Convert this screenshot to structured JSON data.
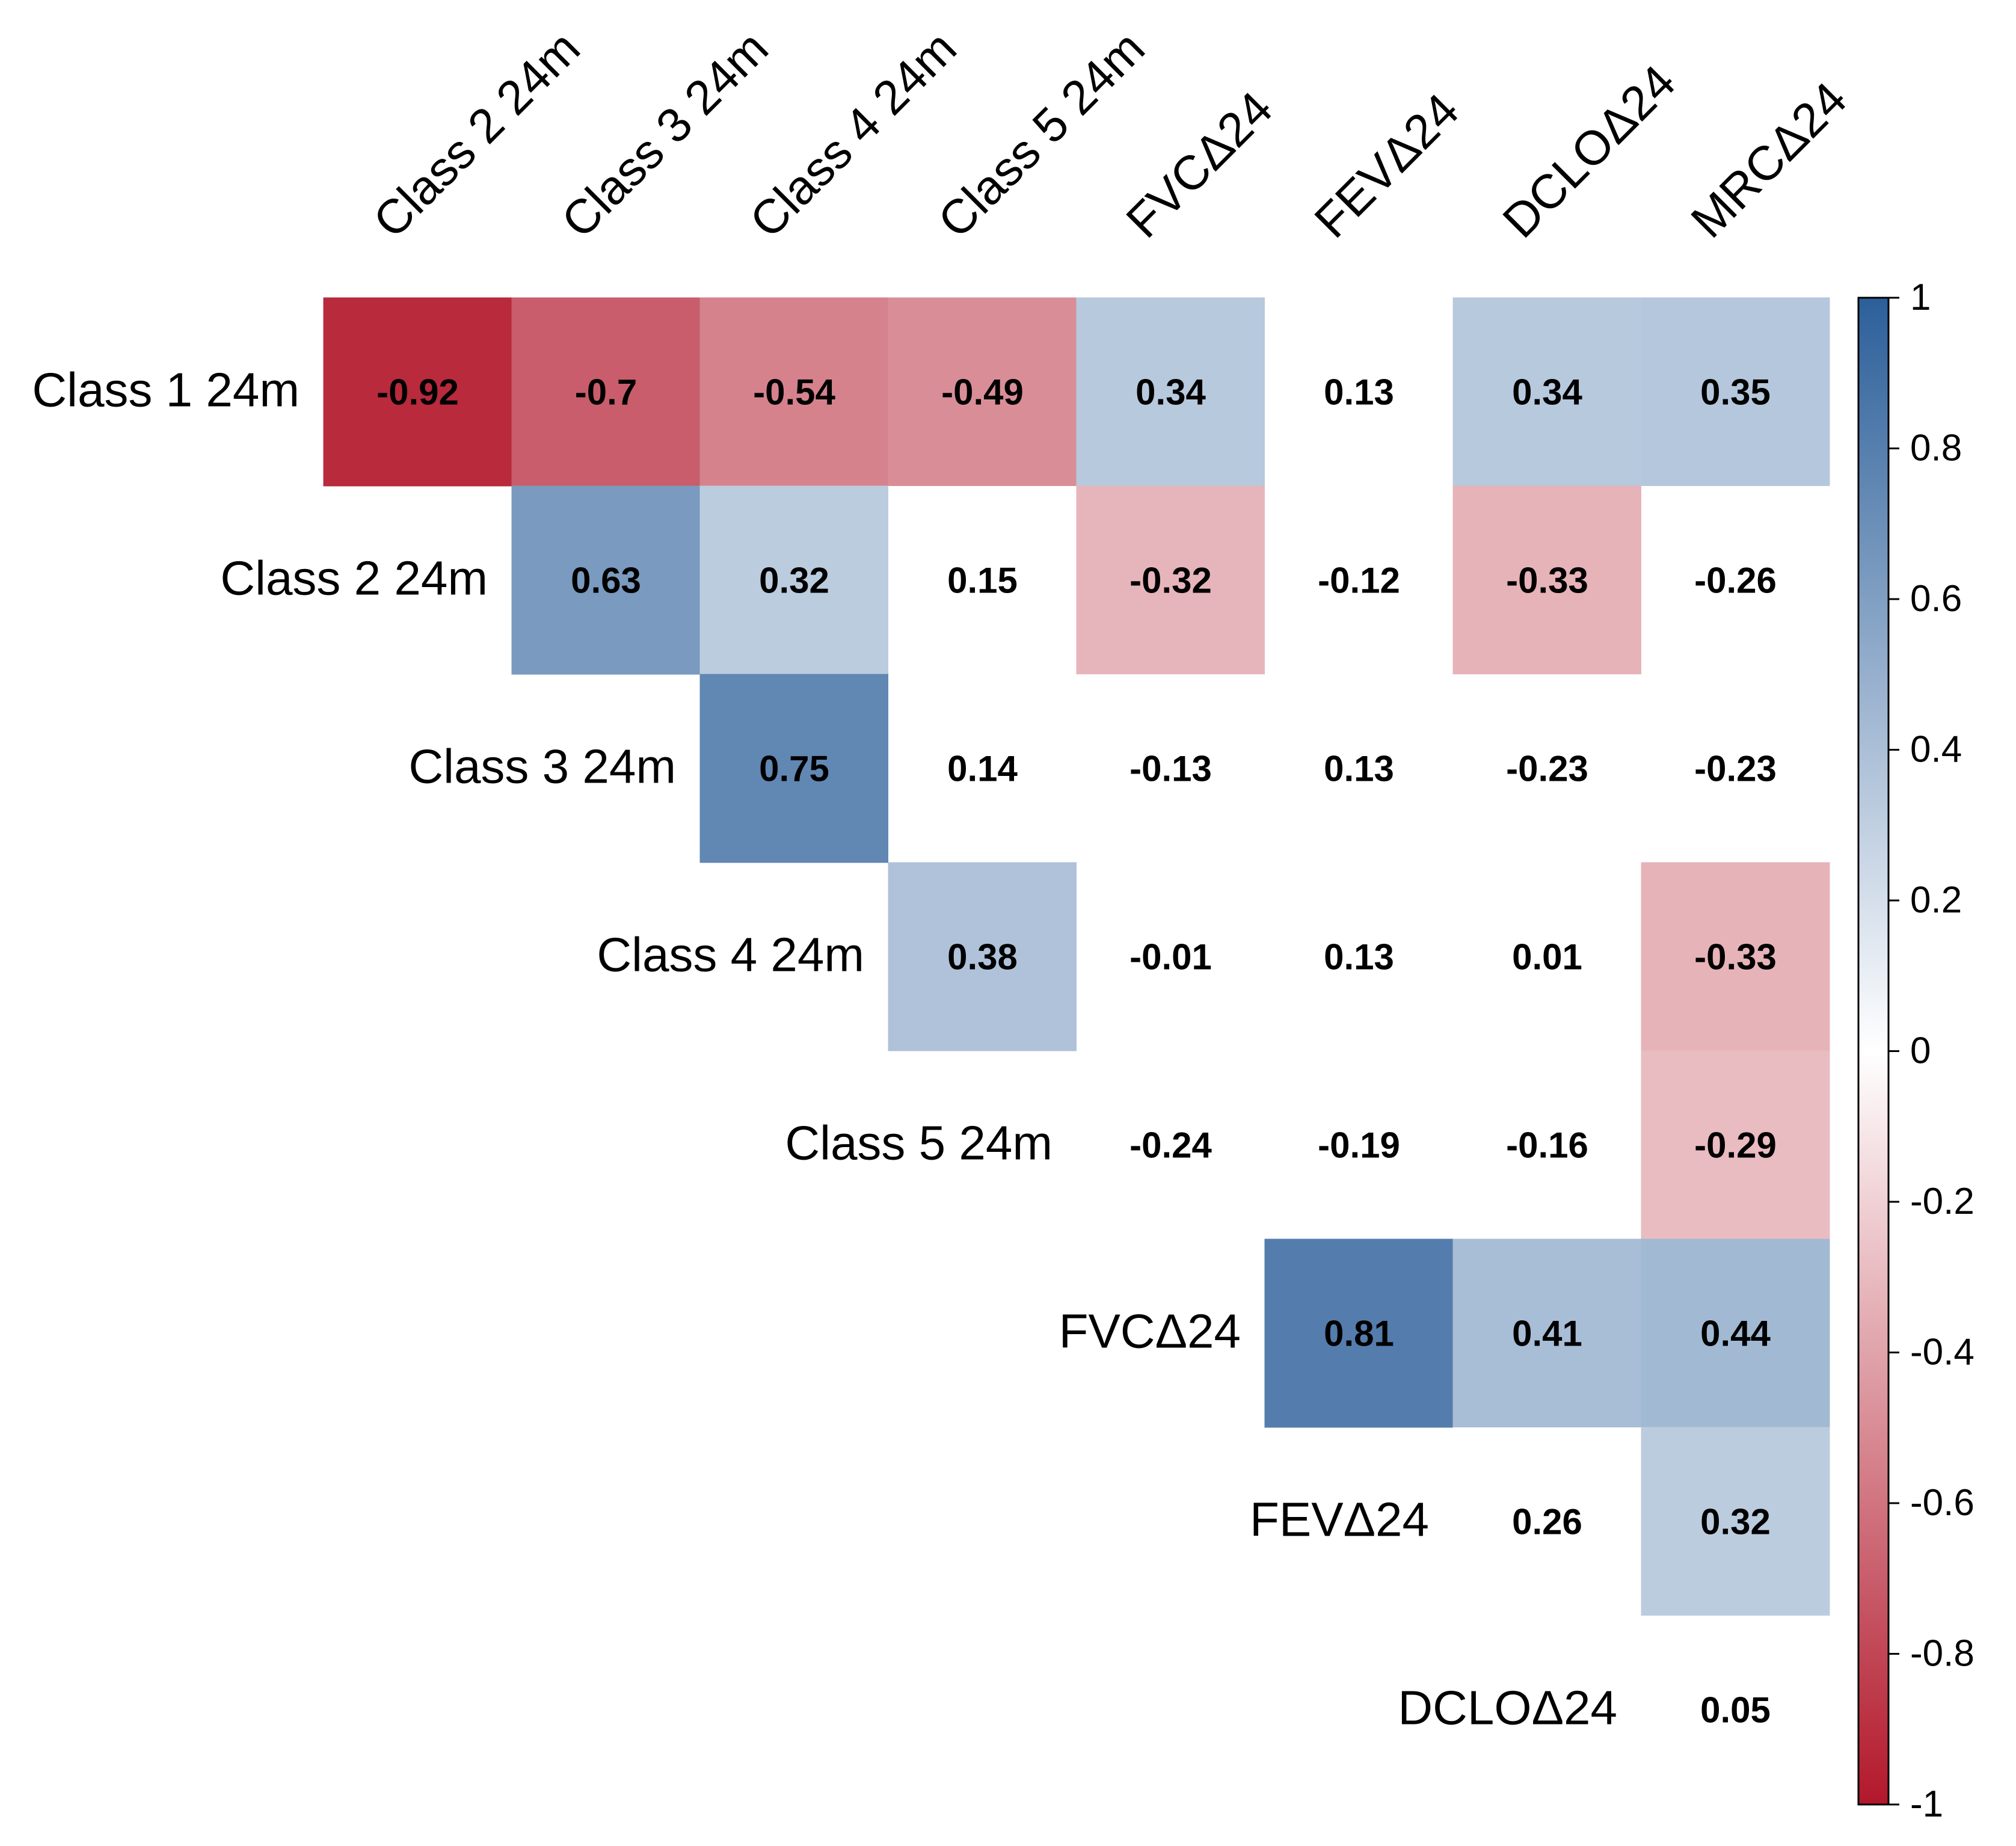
{
  "chart_data": {
    "type": "heatmap",
    "subtype": "correlation-upper-triangle",
    "row_labels": [
      "Class 1 24m",
      "Class 2 24m",
      "Class 3 24m",
      "Class 4 24m",
      "Class 5 24m",
      "FVCΔ24",
      "FEVΔ24",
      "DCLOΔ24"
    ],
    "col_labels": [
      "Class 2 24m",
      "Class 3 24m",
      "Class 4 24m",
      "Class 5 24m",
      "FVCΔ24",
      "FEVΔ24",
      "DCLOΔ24",
      "MRCΔ24"
    ],
    "values": [
      [
        -0.92,
        -0.7,
        -0.54,
        -0.49,
        0.34,
        0.13,
        0.34,
        0.35
      ],
      [
        null,
        0.63,
        0.32,
        0.15,
        -0.32,
        -0.12,
        -0.33,
        -0.26
      ],
      [
        null,
        null,
        0.75,
        0.14,
        -0.13,
        0.13,
        -0.23,
        -0.23
      ],
      [
        null,
        null,
        null,
        0.38,
        -0.01,
        0.13,
        0.01,
        -0.33
      ],
      [
        null,
        null,
        null,
        null,
        -0.24,
        -0.19,
        -0.16,
        -0.29
      ],
      [
        null,
        null,
        null,
        null,
        null,
        0.81,
        0.41,
        0.44
      ],
      [
        null,
        null,
        null,
        null,
        null,
        null,
        0.26,
        0.32
      ],
      [
        null,
        null,
        null,
        null,
        null,
        null,
        null,
        0.05
      ]
    ],
    "value_labels": [
      [
        "-0.92",
        "-0.7",
        "-0.54",
        "-0.49",
        "0.34",
        "0.13",
        "0.34",
        "0.35"
      ],
      [
        null,
        "0.63",
        "0.32",
        "0.15",
        "-0.32",
        "-0.12",
        "-0.33",
        "-0.26"
      ],
      [
        null,
        null,
        "0.75",
        "0.14",
        "-0.13",
        "0.13",
        "-0.23",
        "-0.23"
      ],
      [
        null,
        null,
        null,
        "0.38",
        "-0.01",
        "0.13",
        "0.01",
        "-0.33"
      ],
      [
        null,
        null,
        null,
        null,
        "-0.24",
        "-0.19",
        "-0.16",
        "-0.29"
      ],
      [
        null,
        null,
        null,
        null,
        null,
        "0.81",
        "0.41",
        "0.44"
      ],
      [
        null,
        null,
        null,
        null,
        null,
        null,
        "0.26",
        "0.32"
      ],
      [
        null,
        null,
        null,
        null,
        null,
        null,
        null,
        "0.05"
      ]
    ],
    "significant_mask": [
      [
        true,
        true,
        true,
        true,
        true,
        false,
        true,
        true
      ],
      [
        false,
        true,
        true,
        false,
        true,
        false,
        true,
        false
      ],
      [
        false,
        false,
        true,
        false,
        false,
        false,
        false,
        false
      ],
      [
        false,
        false,
        false,
        true,
        false,
        false,
        false,
        true
      ],
      [
        false,
        false,
        false,
        false,
        false,
        false,
        false,
        true
      ],
      [
        false,
        false,
        false,
        false,
        false,
        true,
        true,
        true
      ],
      [
        false,
        false,
        false,
        false,
        false,
        false,
        false,
        true
      ],
      [
        false,
        false,
        false,
        false,
        false,
        false,
        false,
        false
      ]
    ],
    "colorbar": {
      "range": [
        -1,
        1
      ],
      "ticks": [
        1,
        0.8,
        0.6,
        0.4,
        0.2,
        0,
        -0.2,
        -0.4,
        -0.6,
        -0.8,
        -1
      ],
      "tick_labels": [
        "1",
        "0.8",
        "0.6",
        "0.4",
        "0.2",
        "0",
        "-0.2",
        "-0.4",
        "-0.6",
        "-0.8",
        "-1"
      ],
      "placement": "right"
    },
    "colors": {
      "negative": "#b2182b",
      "neutral": "#ffffff",
      "positive": "#2c5f9a"
    }
  }
}
